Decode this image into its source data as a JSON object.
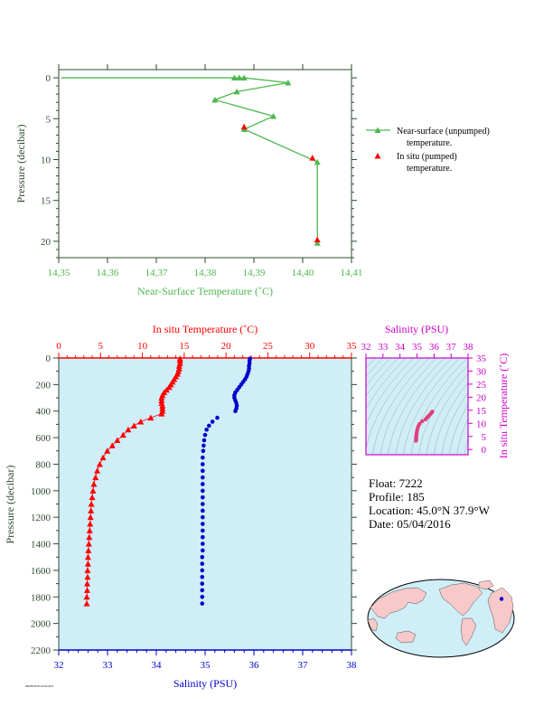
{
  "colors": {
    "green": "#4db84d",
    "red": "#ff0000",
    "blue": "#0000cc",
    "magenta": "#cc00cc",
    "axis_dark": "#2e4a2e",
    "panel_bg": "#cfeef8",
    "land": "#f7c9c9"
  },
  "chart_data": [
    {
      "type": "line",
      "xlabel": "Near-Surface Temperature (˚C)",
      "ylabel": "Pressure (decibar)",
      "xlim": [
        14.35,
        14.41
      ],
      "ylim": [
        22,
        -1
      ],
      "x_ticks": [
        "14,35",
        "14,36",
        "14,37",
        "14,38",
        "14,39",
        "14,40",
        "14,41"
      ],
      "y_ticks": [
        "0",
        "5",
        "10",
        "15",
        "20"
      ],
      "series": [
        {
          "name": "Near-surface (unpumped) temperature.",
          "marker": "triangle",
          "points": [
            {
              "x": 14.3505,
              "y": 0.0
            },
            {
              "x": 14.387,
              "y": 0.0
            },
            {
              "x": 14.386,
              "y": 0.0
            },
            {
              "x": 14.388,
              "y": 0.0
            },
            {
              "x": 14.397,
              "y": 0.6
            },
            {
              "x": 14.3865,
              "y": 1.7
            },
            {
              "x": 14.382,
              "y": 2.7
            },
            {
              "x": 14.394,
              "y": 4.7
            },
            {
              "x": 14.388,
              "y": 6.3
            },
            {
              "x": 14.403,
              "y": 10.3
            },
            {
              "x": 14.403,
              "y": 20.2
            }
          ]
        },
        {
          "name": "In situ (pumped) temperature.",
          "marker": "triangle",
          "points": [
            {
              "x": 14.388,
              "y": 6.0
            },
            {
              "x": 14.402,
              "y": 9.8
            },
            {
              "x": 14.403,
              "y": 19.8
            }
          ]
        }
      ],
      "legend": {
        "position": "right",
        "entry1_line1": "Near-surface (unpumped)",
        "entry1_line2": "temperature.",
        "entry2_line1": "In situ (pumped)",
        "entry2_line2": "temperature."
      }
    },
    {
      "type": "scatter",
      "ylabel": "Pressure (decibar)",
      "top_xlabel": "In situ Temperature (˚C)",
      "bottom_xlabel": "Salinity (PSU)",
      "temp_lim": [
        0,
        35
      ],
      "sal_lim": [
        32,
        38
      ],
      "ylim": [
        2200,
        0
      ],
      "temp_ticks": [
        "0",
        "5",
        "10",
        "15",
        "20",
        "25",
        "30",
        "35"
      ],
      "sal_ticks": [
        "32",
        "33",
        "34",
        "35",
        "36",
        "37",
        "38"
      ],
      "y_ticks": [
        "0",
        "200",
        "400",
        "600",
        "800",
        "1000",
        "1200",
        "1400",
        "1600",
        "1800",
        "2000",
        "2200"
      ],
      "temperature_profile": [
        {
          "p": 5,
          "t": 14.5
        },
        {
          "p": 20,
          "t": 14.5
        },
        {
          "p": 40,
          "t": 14.5
        },
        {
          "p": 60,
          "t": 14.4
        },
        {
          "p": 80,
          "t": 14.4
        },
        {
          "p": 100,
          "t": 14.3
        },
        {
          "p": 120,
          "t": 14.2
        },
        {
          "p": 140,
          "t": 14.0
        },
        {
          "p": 160,
          "t": 13.8
        },
        {
          "p": 180,
          "t": 13.6
        },
        {
          "p": 200,
          "t": 13.4
        },
        {
          "p": 220,
          "t": 13.2
        },
        {
          "p": 240,
          "t": 12.9
        },
        {
          "p": 260,
          "t": 12.6
        },
        {
          "p": 280,
          "t": 12.4
        },
        {
          "p": 300,
          "t": 12.3
        },
        {
          "p": 320,
          "t": 12.3
        },
        {
          "p": 340,
          "t": 12.3
        },
        {
          "p": 360,
          "t": 12.4
        },
        {
          "p": 380,
          "t": 12.4
        },
        {
          "p": 400,
          "t": 12.4
        },
        {
          "p": 420,
          "t": 12.3
        },
        {
          "p": 450,
          "t": 11.0
        },
        {
          "p": 480,
          "t": 9.8
        },
        {
          "p": 510,
          "t": 9.0
        },
        {
          "p": 540,
          "t": 8.3
        },
        {
          "p": 580,
          "t": 7.7
        },
        {
          "p": 620,
          "t": 7.0
        },
        {
          "p": 660,
          "t": 6.4
        },
        {
          "p": 700,
          "t": 5.8
        },
        {
          "p": 750,
          "t": 5.3
        },
        {
          "p": 800,
          "t": 4.9
        },
        {
          "p": 850,
          "t": 4.6
        },
        {
          "p": 900,
          "t": 4.4
        },
        {
          "p": 950,
          "t": 4.2
        },
        {
          "p": 1000,
          "t": 4.1
        },
        {
          "p": 1050,
          "t": 4.0
        },
        {
          "p": 1100,
          "t": 3.9
        },
        {
          "p": 1150,
          "t": 3.85
        },
        {
          "p": 1200,
          "t": 3.8
        },
        {
          "p": 1250,
          "t": 3.75
        },
        {
          "p": 1300,
          "t": 3.7
        },
        {
          "p": 1350,
          "t": 3.65
        },
        {
          "p": 1400,
          "t": 3.6
        },
        {
          "p": 1450,
          "t": 3.55
        },
        {
          "p": 1500,
          "t": 3.5
        },
        {
          "p": 1550,
          "t": 3.5
        },
        {
          "p": 1600,
          "t": 3.45
        },
        {
          "p": 1650,
          "t": 3.45
        },
        {
          "p": 1700,
          "t": 3.4
        },
        {
          "p": 1750,
          "t": 3.4
        },
        {
          "p": 1800,
          "t": 3.35
        },
        {
          "p": 1850,
          "t": 3.35
        }
      ],
      "salinity_profile": [
        {
          "p": 5,
          "s": 35.92
        },
        {
          "p": 20,
          "s": 35.91
        },
        {
          "p": 40,
          "s": 35.91
        },
        {
          "p": 60,
          "s": 35.9
        },
        {
          "p": 80,
          "s": 35.9
        },
        {
          "p": 100,
          "s": 35.89
        },
        {
          "p": 120,
          "s": 35.87
        },
        {
          "p": 140,
          "s": 35.85
        },
        {
          "p": 160,
          "s": 35.82
        },
        {
          "p": 180,
          "s": 35.78
        },
        {
          "p": 200,
          "s": 35.74
        },
        {
          "p": 220,
          "s": 35.7
        },
        {
          "p": 240,
          "s": 35.66
        },
        {
          "p": 260,
          "s": 35.62
        },
        {
          "p": 280,
          "s": 35.6
        },
        {
          "p": 300,
          "s": 35.6
        },
        {
          "p": 320,
          "s": 35.62
        },
        {
          "p": 340,
          "s": 35.64
        },
        {
          "p": 360,
          "s": 35.65
        },
        {
          "p": 380,
          "s": 35.64
        },
        {
          "p": 400,
          "s": 35.62
        },
        {
          "p": 450,
          "s": 35.25
        },
        {
          "p": 480,
          "s": 35.15
        },
        {
          "p": 510,
          "s": 35.08
        },
        {
          "p": 540,
          "s": 35.03
        },
        {
          "p": 580,
          "s": 35.0
        },
        {
          "p": 620,
          "s": 34.98
        },
        {
          "p": 660,
          "s": 34.97
        },
        {
          "p": 700,
          "s": 34.96
        },
        {
          "p": 750,
          "s": 34.95
        },
        {
          "p": 800,
          "s": 34.95
        },
        {
          "p": 850,
          "s": 34.95
        },
        {
          "p": 900,
          "s": 34.95
        },
        {
          "p": 950,
          "s": 34.95
        },
        {
          "p": 1000,
          "s": 34.95
        },
        {
          "p": 1050,
          "s": 34.95
        },
        {
          "p": 1100,
          "s": 34.95
        },
        {
          "p": 1150,
          "s": 34.95
        },
        {
          "p": 1200,
          "s": 34.95
        },
        {
          "p": 1250,
          "s": 34.95
        },
        {
          "p": 1300,
          "s": 34.95
        },
        {
          "p": 1350,
          "s": 34.95
        },
        {
          "p": 1400,
          "s": 34.95
        },
        {
          "p": 1450,
          "s": 34.95
        },
        {
          "p": 1500,
          "s": 34.94
        },
        {
          "p": 1550,
          "s": 34.94
        },
        {
          "p": 1600,
          "s": 34.94
        },
        {
          "p": 1650,
          "s": 34.94
        },
        {
          "p": 1700,
          "s": 34.94
        },
        {
          "p": 1750,
          "s": 34.94
        },
        {
          "p": 1800,
          "s": 34.94
        },
        {
          "p": 1850,
          "s": 34.94
        }
      ]
    },
    {
      "type": "scatter",
      "top_xlabel": "Salinity (PSU)",
      "right_ylabel": "In situ Temperature (˚C)",
      "sal_lim": [
        32,
        38
      ],
      "temp_lim": [
        -2,
        35
      ],
      "sal_ticks": [
        "32",
        "33",
        "34",
        "35",
        "36",
        "37",
        "38"
      ],
      "temp_ticks": [
        "0",
        "5",
        "10",
        "15",
        "20",
        "25",
        "30",
        "35"
      ],
      "ts_points": [
        {
          "s": 35.9,
          "t": 14.5
        },
        {
          "s": 35.85,
          "t": 14.0
        },
        {
          "s": 35.75,
          "t": 13.3
        },
        {
          "s": 35.65,
          "t": 12.6
        },
        {
          "s": 35.6,
          "t": 12.3
        },
        {
          "s": 35.5,
          "t": 11.5
        },
        {
          "s": 35.3,
          "t": 10.8
        },
        {
          "s": 35.15,
          "t": 9.8
        },
        {
          "s": 35.08,
          "t": 8.9
        },
        {
          "s": 35.03,
          "t": 8.0
        },
        {
          "s": 35.0,
          "t": 7.2
        },
        {
          "s": 34.98,
          "t": 6.3
        },
        {
          "s": 34.96,
          "t": 5.4
        },
        {
          "s": 34.95,
          "t": 4.7
        },
        {
          "s": 34.95,
          "t": 4.2
        },
        {
          "s": 34.95,
          "t": 3.9
        },
        {
          "s": 34.95,
          "t": 3.6
        },
        {
          "s": 34.94,
          "t": 3.35
        }
      ]
    }
  ],
  "profile_info": {
    "float": "Float:  7222",
    "profile": "Profile:  185",
    "location": "Location:  45.0°N  37.9°W",
    "date": "Date:  05/04/2016"
  },
  "map": {
    "marker_longitude": -37.9,
    "marker_latitude": 45.0
  },
  "footer_text": "PROFILE185 05/04/2016"
}
